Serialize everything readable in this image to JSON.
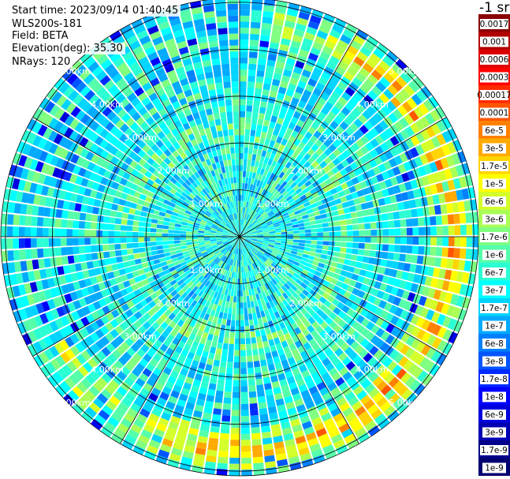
{
  "header": {
    "start_time": "Start time: 2023/09/14 01:40:45",
    "instrument": "WLS200s-181",
    "field": "Field: BETA",
    "elevation": "Elevation(deg): 35.30",
    "nrays": "NRays: 120",
    "unit": "-1 sr"
  },
  "chart_data": {
    "type": "heatmap",
    "projection": "polar (PPI scan)",
    "field": "BETA",
    "elevation_deg": 35.3,
    "n_rays": 120,
    "range_rings_km": [
      "1.00km",
      "2.00km",
      "3.00km",
      "4.00km",
      "5.00km"
    ],
    "range_ring_values_km": [
      1,
      2,
      3,
      4,
      5
    ],
    "max_range_km": 5.1,
    "spokes_deg": [
      0,
      30,
      60,
      90,
      120,
      150,
      180,
      210,
      240,
      270,
      300,
      330
    ],
    "colorbar": {
      "labels": [
        "0.0017",
        "0.001",
        "0.0006",
        "0.0003",
        "0.00017",
        "0.0001",
        "6e-5",
        "3e-5",
        "1.7e-5",
        "1e-5",
        "6e-6",
        "3e-6",
        "1.7e-6",
        "1e-6",
        "6e-7",
        "3e-7",
        "1.7e-7",
        "1e-7",
        "6e-8",
        "3e-8",
        "1.7e-8",
        "1e-8",
        "6e-9",
        "3e-9",
        "1.7e-9",
        "1e-9"
      ],
      "colors": [
        "#8b0000",
        "#b20000",
        "#dd0000",
        "#ff0000",
        "#ff2a00",
        "#ff5500",
        "#ff8000",
        "#ffaa00",
        "#ffd400",
        "#ffff00",
        "#d4ff2a",
        "#aaff55",
        "#80ff80",
        "#55ffaa",
        "#2affd4",
        "#00ffff",
        "#00d4ff",
        "#00aaff",
        "#0080ff",
        "#0055ff",
        "#002aff",
        "#0000ff",
        "#0000dd",
        "#0000b2",
        "#00008b",
        "#000070"
      ],
      "min": 1e-09,
      "max": 0.0017,
      "scale": "log"
    },
    "background_level": 3.5e-07,
    "aerosol_ring": {
      "range_km": 4.55,
      "width_km": 0.45,
      "peak_value": 3e-05,
      "sector_deg": [
        -40,
        95
      ]
    },
    "inner_ring": {
      "range_km": 2.35,
      "value": 6e-07
    }
  }
}
